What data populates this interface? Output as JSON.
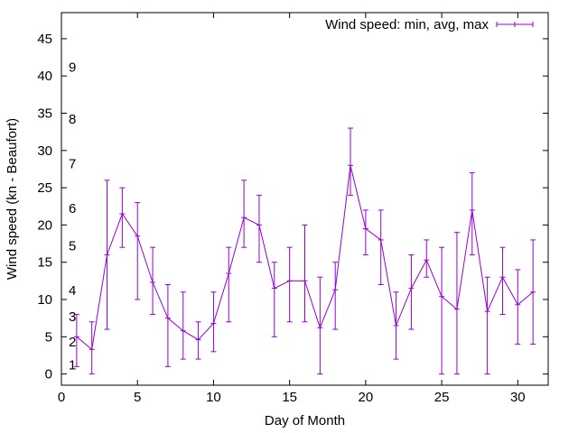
{
  "chart_data": {
    "type": "line",
    "title": "",
    "xlabel": "Day of Month",
    "ylabel": "Wind speed (kn - Beaufort)",
    "xlim": [
      0,
      32
    ],
    "ylim": [
      -1.5,
      48.5
    ],
    "xticks": [
      0,
      5,
      10,
      15,
      20,
      25,
      30
    ],
    "yticks": [
      0,
      5,
      10,
      15,
      20,
      25,
      30,
      35,
      40,
      45
    ],
    "beaufort_labels": [
      {
        "label": "1",
        "value": 1.2
      },
      {
        "label": "2",
        "value": 4.3
      },
      {
        "label": "3",
        "value": 7.7
      },
      {
        "label": "4",
        "value": 11.2
      },
      {
        "label": "5",
        "value": 17.2
      },
      {
        "label": "6",
        "value": 22.2
      },
      {
        "label": "7",
        "value": 28.2
      },
      {
        "label": "8",
        "value": 34.2
      },
      {
        "label": "9",
        "value": 41.2
      }
    ],
    "grid": false,
    "legend_position": "top-right",
    "series": [
      {
        "name": "Wind speed: min, avg, max",
        "color": "#9400d3",
        "x": [
          1,
          2,
          3,
          4,
          5,
          6,
          7,
          8,
          9,
          10,
          11,
          12,
          13,
          14,
          15,
          16,
          17,
          18,
          19,
          20,
          21,
          22,
          23,
          24,
          25,
          26,
          27,
          28,
          29,
          30,
          31
        ],
        "min": [
          1,
          0,
          6,
          17,
          10,
          8,
          1,
          2,
          2,
          3,
          7,
          17,
          15,
          5,
          7,
          7,
          0,
          6,
          24,
          16,
          12,
          2,
          6,
          13,
          0,
          0,
          16,
          0,
          8,
          4,
          4
        ],
        "avg": [
          5,
          3.3,
          16,
          21.5,
          18.5,
          12.3,
          7.5,
          5.8,
          4.6,
          6.8,
          13.5,
          21,
          20,
          11.5,
          12.5,
          12.5,
          6.2,
          11.3,
          28,
          19.5,
          18,
          6.5,
          11.5,
          15.3,
          10.4,
          8.7,
          22,
          8.4,
          13,
          9.3,
          11
        ],
        "max": [
          8,
          7,
          26,
          25,
          23,
          17,
          12,
          11,
          7,
          11,
          17,
          26,
          24,
          15,
          17,
          20,
          13,
          15,
          33,
          22,
          22,
          11,
          16,
          18,
          17,
          19,
          27,
          13,
          17,
          14,
          18
        ]
      }
    ]
  }
}
